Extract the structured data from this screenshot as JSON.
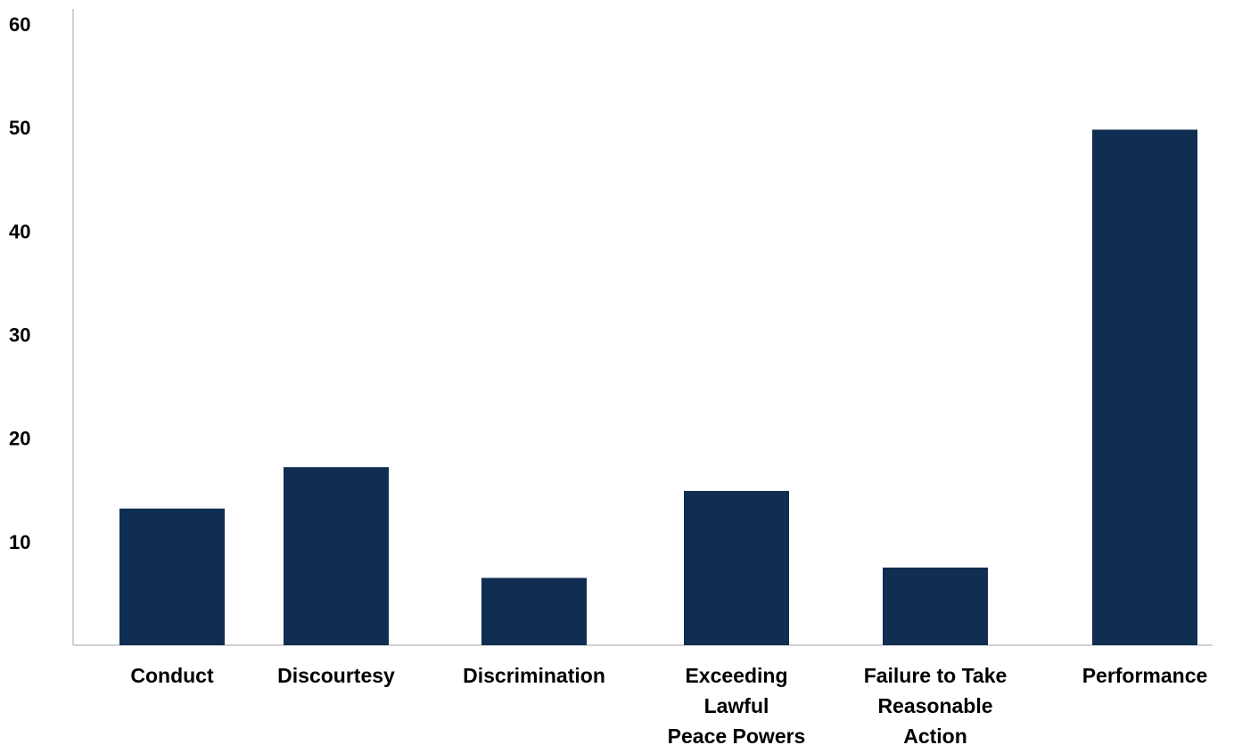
{
  "chart_data": {
    "type": "bar",
    "title": "",
    "xlabel": "",
    "ylabel": "",
    "categories": [
      "Conduct",
      "Discourtesy",
      "Discrimination",
      "Exceeding Lawful Peace Powers",
      "Failure to Take Reasonable Action",
      "Performance"
    ],
    "category_label_lines": [
      [
        "Conduct"
      ],
      [
        "Discourtesy"
      ],
      [
        "Discrimination"
      ],
      [
        "Exceeding",
        "Lawful",
        "Peace Powers"
      ],
      [
        "Failure to Take",
        "Reasonable",
        "Action"
      ],
      [
        "Performance"
      ]
    ],
    "values": [
      13.2,
      17.2,
      6.5,
      14.9,
      7.5,
      49.8
    ],
    "ylim": [
      0,
      60
    ],
    "yticks": [
      10,
      20,
      30,
      40,
      50,
      60
    ],
    "grid": false,
    "legend": "none",
    "bar_color": "#102d52",
    "axis_color": "#d0d0d0"
  }
}
